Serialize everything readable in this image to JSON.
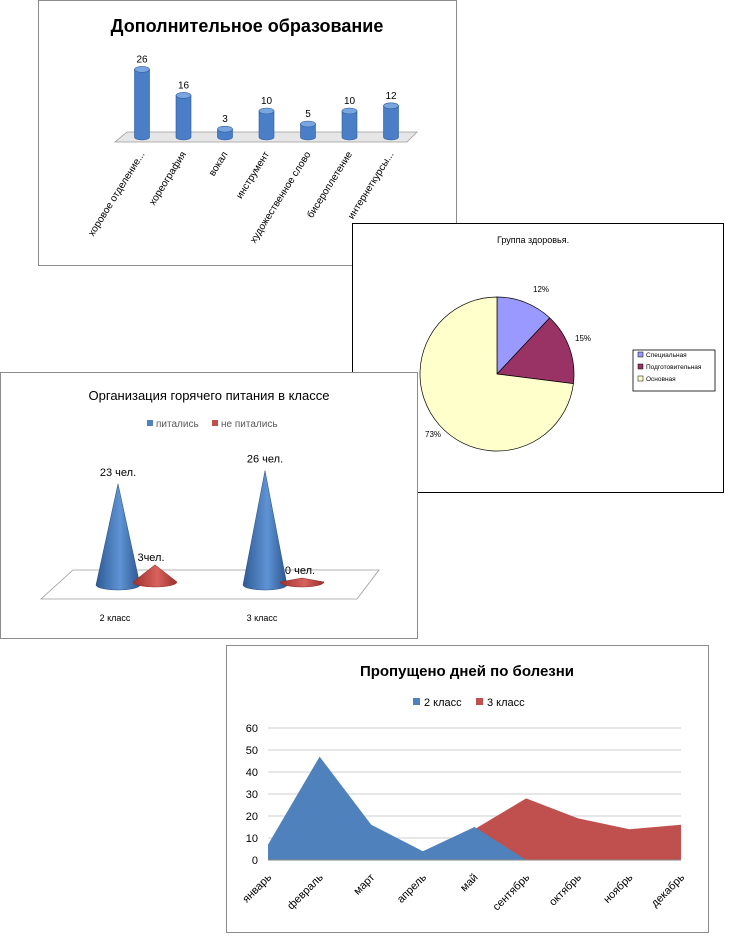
{
  "chart_data": [
    {
      "type": "bar",
      "title": "Дополнительное образование",
      "categories": [
        "хоровое отделение...",
        "хореография",
        "вокал",
        "инструмент",
        "художественное слово",
        "бисероплетение",
        "интернеткурсы..."
      ],
      "values": [
        26,
        16,
        3,
        10,
        5,
        10,
        12
      ],
      "ylim": [
        0,
        30
      ],
      "colors": {
        "bar": "#4a7ec6",
        "bar_dark": "#2c5a9e",
        "floor": "#e6e6e6"
      },
      "legend": "none",
      "grid": false
    },
    {
      "type": "pie",
      "title": "Группа здоровья.",
      "labels": [
        "Специальная",
        "Подготовительная",
        "Основная"
      ],
      "values": [
        12,
        15,
        73
      ],
      "value_labels": [
        "12%",
        "15%",
        "73%"
      ],
      "colors": [
        "#9999ff",
        "#993366",
        "#ffffcc"
      ],
      "legend": "right"
    },
    {
      "type": "bar",
      "style": "cone",
      "title": "Организация горячего питания в классе",
      "categories": [
        "2 класс",
        "3 класс"
      ],
      "series": [
        {
          "name": "питались",
          "values": [
            23,
            26
          ],
          "value_labels": [
            "23 чел.",
            "26 чел."
          ],
          "color": "#4f81bd"
        },
        {
          "name": "не питались",
          "values": [
            3,
            0
          ],
          "value_labels": [
            "3чел.",
            "0 чел."
          ],
          "color": "#c0504d"
        }
      ],
      "ylim": [
        0,
        30
      ],
      "legend": "top"
    },
    {
      "type": "area",
      "title": "Пропущено дней по болезни",
      "categories": [
        "январь",
        "февраль",
        "март",
        "апрель",
        "май",
        "сентябрь",
        "октябрь",
        "ноябрь",
        "декабрь"
      ],
      "series": [
        {
          "name": "2 класс",
          "values": [
            7,
            47,
            16,
            4,
            15,
            0,
            null,
            null,
            null
          ],
          "color": "#4f81bd"
        },
        {
          "name": "3 класс",
          "values": [
            null,
            null,
            null,
            null,
            14,
            28,
            19,
            14,
            16
          ],
          "color": "#c0504d"
        }
      ],
      "yticks": [
        "0",
        "10",
        "20",
        "30",
        "40",
        "50",
        "60"
      ],
      "ylim": [
        0,
        60
      ],
      "grid": true,
      "legend": "top"
    }
  ]
}
